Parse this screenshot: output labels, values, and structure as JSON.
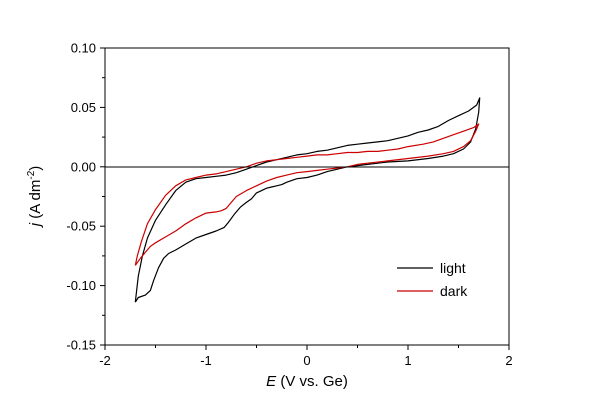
{
  "chart_data": {
    "type": "line",
    "xlabel": {
      "symbol": "E",
      "rest": " (V vs. Ge)"
    },
    "ylabel": {
      "symbol": "j",
      "rest": " (A dm",
      "sup": "-2",
      "close": ")"
    },
    "xlim": [
      -2,
      2
    ],
    "ylim": [
      -0.15,
      0.1
    ],
    "x_ticks": [
      -2,
      -1,
      0,
      1,
      2
    ],
    "x_tick_labels": [
      "-2",
      "-1",
      "0",
      "1",
      "2"
    ],
    "y_ticks": [
      -0.15,
      -0.1,
      -0.05,
      0.0,
      0.05,
      0.1
    ],
    "y_tick_labels": [
      "-0.15",
      "-0.10",
      "-0.05",
      "0.00",
      "0.05",
      "0.10"
    ],
    "zero_line": 0,
    "grid": false,
    "legend_position": "bottom-right",
    "series": [
      {
        "name": "light",
        "color": "#000000",
        "points": [
          [
            -1.7,
            -0.114
          ],
          [
            -1.67,
            -0.11
          ],
          [
            -1.6,
            -0.108
          ],
          [
            -1.55,
            -0.104
          ],
          [
            -1.52,
            -0.096
          ],
          [
            -1.47,
            -0.085
          ],
          [
            -1.42,
            -0.077
          ],
          [
            -1.37,
            -0.073
          ],
          [
            -1.3,
            -0.07
          ],
          [
            -1.2,
            -0.065
          ],
          [
            -1.1,
            -0.06
          ],
          [
            -1.0,
            -0.057
          ],
          [
            -0.9,
            -0.054
          ],
          [
            -0.82,
            -0.051
          ],
          [
            -0.78,
            -0.047
          ],
          [
            -0.72,
            -0.04
          ],
          [
            -0.66,
            -0.034
          ],
          [
            -0.6,
            -0.03
          ],
          [
            -0.55,
            -0.027
          ],
          [
            -0.5,
            -0.022
          ],
          [
            -0.45,
            -0.02
          ],
          [
            -0.4,
            -0.018
          ],
          [
            -0.35,
            -0.017
          ],
          [
            -0.3,
            -0.016
          ],
          [
            -0.25,
            -0.015
          ],
          [
            -0.2,
            -0.013
          ],
          [
            -0.1,
            -0.01
          ],
          [
            0.0,
            -0.009
          ],
          [
            0.1,
            -0.007
          ],
          [
            0.2,
            -0.004
          ],
          [
            0.3,
            -0.002
          ],
          [
            0.4,
            0.0
          ],
          [
            0.5,
            0.001
          ],
          [
            0.6,
            0.002
          ],
          [
            0.8,
            0.004
          ],
          [
            1.0,
            0.005
          ],
          [
            1.2,
            0.007
          ],
          [
            1.35,
            0.009
          ],
          [
            1.45,
            0.011
          ],
          [
            1.55,
            0.015
          ],
          [
            1.62,
            0.021
          ],
          [
            1.67,
            0.032
          ],
          [
            1.7,
            0.046
          ],
          [
            1.71,
            0.058
          ],
          [
            1.68,
            0.052
          ],
          [
            1.6,
            0.047
          ],
          [
            1.5,
            0.043
          ],
          [
            1.4,
            0.039
          ],
          [
            1.3,
            0.034
          ],
          [
            1.2,
            0.031
          ],
          [
            1.1,
            0.029
          ],
          [
            1.0,
            0.026
          ],
          [
            0.9,
            0.024
          ],
          [
            0.8,
            0.022
          ],
          [
            0.7,
            0.021
          ],
          [
            0.6,
            0.02
          ],
          [
            0.5,
            0.019
          ],
          [
            0.4,
            0.018
          ],
          [
            0.3,
            0.016
          ],
          [
            0.2,
            0.014
          ],
          [
            0.1,
            0.013
          ],
          [
            0.0,
            0.011
          ],
          [
            -0.1,
            0.01
          ],
          [
            -0.2,
            0.008
          ],
          [
            -0.3,
            0.006
          ],
          [
            -0.4,
            0.004
          ],
          [
            -0.5,
            0.001
          ],
          [
            -0.6,
            -0.002
          ],
          [
            -0.7,
            -0.005
          ],
          [
            -0.8,
            -0.007
          ],
          [
            -0.9,
            -0.008
          ],
          [
            -1.0,
            -0.009
          ],
          [
            -1.1,
            -0.01
          ],
          [
            -1.2,
            -0.013
          ],
          [
            -1.3,
            -0.02
          ],
          [
            -1.4,
            -0.032
          ],
          [
            -1.5,
            -0.045
          ],
          [
            -1.58,
            -0.06
          ],
          [
            -1.63,
            -0.075
          ],
          [
            -1.67,
            -0.092
          ],
          [
            -1.7,
            -0.114
          ]
        ]
      },
      {
        "name": "dark",
        "color": "#cc0000",
        "points": [
          [
            -1.7,
            -0.083
          ],
          [
            -1.65,
            -0.077
          ],
          [
            -1.6,
            -0.072
          ],
          [
            -1.55,
            -0.067
          ],
          [
            -1.5,
            -0.064
          ],
          [
            -1.4,
            -0.059
          ],
          [
            -1.3,
            -0.054
          ],
          [
            -1.2,
            -0.048
          ],
          [
            -1.1,
            -0.043
          ],
          [
            -1.0,
            -0.039
          ],
          [
            -0.9,
            -0.038
          ],
          [
            -0.85,
            -0.037
          ],
          [
            -0.8,
            -0.035
          ],
          [
            -0.75,
            -0.03
          ],
          [
            -0.7,
            -0.025
          ],
          [
            -0.6,
            -0.02
          ],
          [
            -0.5,
            -0.016
          ],
          [
            -0.4,
            -0.012
          ],
          [
            -0.3,
            -0.009
          ],
          [
            -0.2,
            -0.007
          ],
          [
            -0.1,
            -0.005
          ],
          [
            0.0,
            -0.004
          ],
          [
            0.1,
            -0.003
          ],
          [
            0.2,
            -0.002
          ],
          [
            0.3,
            -0.001
          ],
          [
            0.4,
            0.0
          ],
          [
            0.5,
            0.002
          ],
          [
            0.6,
            0.003
          ],
          [
            0.8,
            0.005
          ],
          [
            1.0,
            0.007
          ],
          [
            1.2,
            0.009
          ],
          [
            1.35,
            0.011
          ],
          [
            1.45,
            0.013
          ],
          [
            1.55,
            0.017
          ],
          [
            1.62,
            0.022
          ],
          [
            1.67,
            0.03
          ],
          [
            1.7,
            0.036
          ],
          [
            1.65,
            0.033
          ],
          [
            1.55,
            0.03
          ],
          [
            1.45,
            0.027
          ],
          [
            1.35,
            0.024
          ],
          [
            1.25,
            0.021
          ],
          [
            1.15,
            0.019
          ],
          [
            1.0,
            0.017
          ],
          [
            0.9,
            0.015
          ],
          [
            0.8,
            0.014
          ],
          [
            0.7,
            0.013
          ],
          [
            0.6,
            0.013
          ],
          [
            0.5,
            0.012
          ],
          [
            0.4,
            0.012
          ],
          [
            0.3,
            0.011
          ],
          [
            0.2,
            0.01
          ],
          [
            0.1,
            0.01
          ],
          [
            0.0,
            0.009
          ],
          [
            -0.1,
            0.008
          ],
          [
            -0.2,
            0.007
          ],
          [
            -0.3,
            0.006
          ],
          [
            -0.4,
            0.005
          ],
          [
            -0.5,
            0.003
          ],
          [
            -0.6,
            0.0
          ],
          [
            -0.7,
            -0.002
          ],
          [
            -0.8,
            -0.004
          ],
          [
            -0.9,
            -0.006
          ],
          [
            -1.0,
            -0.007
          ],
          [
            -1.1,
            -0.009
          ],
          [
            -1.2,
            -0.011
          ],
          [
            -1.3,
            -0.016
          ],
          [
            -1.4,
            -0.024
          ],
          [
            -1.5,
            -0.036
          ],
          [
            -1.58,
            -0.048
          ],
          [
            -1.64,
            -0.063
          ],
          [
            -1.68,
            -0.075
          ],
          [
            -1.7,
            -0.083
          ]
        ]
      }
    ]
  }
}
